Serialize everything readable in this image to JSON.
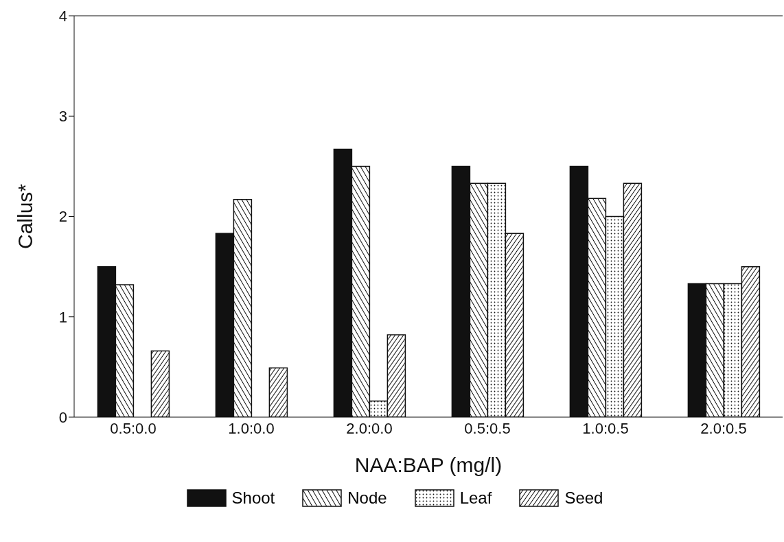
{
  "chart_data": {
    "type": "bar",
    "xlabel": "NAA:BAP (mg/l)",
    "ylabel": "Callus*",
    "categories": [
      "0.5:0.0",
      "1.0:0.0",
      "2.0:0.0",
      "0.5:0.5",
      "1.0:0.5",
      "2.0:0.5"
    ],
    "series": [
      {
        "name": "Shoot",
        "color": "#111111",
        "values": [
          1.5,
          1.83,
          2.67,
          2.5,
          2.5,
          1.33
        ]
      },
      {
        "name": "Node",
        "color": "#111111",
        "values": [
          1.32,
          2.17,
          2.5,
          2.33,
          2.18,
          1.33
        ]
      },
      {
        "name": "Leaf",
        "color": "#111111",
        "values": [
          null,
          null,
          0.16,
          2.33,
          2.0,
          1.33
        ]
      },
      {
        "name": "Seed",
        "color": "#111111",
        "values": [
          0.66,
          0.49,
          0.82,
          1.83,
          2.33,
          1.5
        ]
      }
    ],
    "ylim": [
      0,
      4
    ],
    "yticks": [
      0,
      1,
      2,
      3,
      4
    ],
    "grid": false,
    "legend": "bottom"
  }
}
